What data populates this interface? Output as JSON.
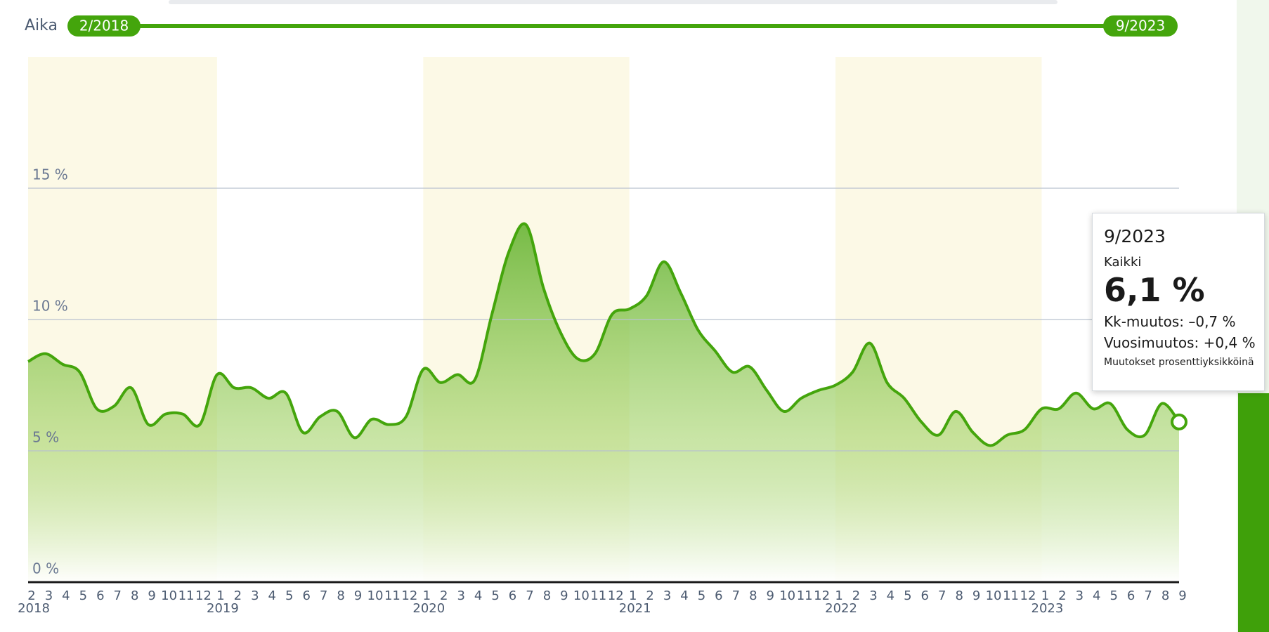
{
  "slider": {
    "label": "Aika",
    "start": "2/2018",
    "end": "9/2023"
  },
  "chart_data": {
    "type": "area",
    "categories": [
      "2",
      "3",
      "4",
      "5",
      "6",
      "7",
      "8",
      "9",
      "10",
      "11",
      "12",
      "1",
      "2",
      "3",
      "4",
      "5",
      "6",
      "7",
      "8",
      "9",
      "10",
      "11",
      "12",
      "1",
      "2",
      "3",
      "4",
      "5",
      "6",
      "7",
      "8",
      "9",
      "10",
      "11",
      "12",
      "1",
      "2",
      "3",
      "4",
      "5",
      "6",
      "7",
      "8",
      "9",
      "10",
      "11",
      "12",
      "1",
      "2",
      "3",
      "4",
      "5",
      "6",
      "7",
      "8",
      "9",
      "10",
      "11",
      "12",
      "1",
      "2",
      "3",
      "4",
      "5",
      "6",
      "7",
      "8",
      "9"
    ],
    "year_labels": [
      "2018",
      "2019",
      "2020",
      "2021",
      "2022",
      "2023"
    ],
    "series": [
      {
        "name": "Kaikki",
        "color": "#44a50c",
        "values": [
          8.4,
          8.7,
          8.3,
          8.0,
          6.6,
          6.7,
          7.4,
          6.0,
          6.4,
          6.4,
          6.0,
          7.9,
          7.4,
          7.4,
          7.0,
          7.2,
          5.7,
          6.3,
          6.5,
          5.5,
          6.2,
          6.0,
          6.3,
          8.1,
          7.6,
          7.9,
          7.7,
          10.2,
          12.6,
          13.6,
          11.2,
          9.5,
          8.5,
          8.7,
          10.2,
          10.4,
          10.9,
          12.2,
          11.0,
          9.6,
          8.8,
          8.0,
          8.2,
          7.3,
          6.5,
          7.0,
          7.3,
          7.5,
          8.0,
          9.1,
          7.6,
          7.0,
          6.1,
          5.6,
          6.5,
          5.7,
          5.2,
          5.6,
          5.8,
          6.6,
          6.6,
          7.2,
          6.6,
          6.8,
          5.8,
          5.6,
          6.8,
          6.1
        ]
      }
    ],
    "ylim": [
      0,
      20
    ],
    "yticks": [
      {
        "value": 0,
        "label": "0 %"
      },
      {
        "value": 5,
        "label": "5 %"
      },
      {
        "value": 10,
        "label": "10 %"
      },
      {
        "value": 15,
        "label": "15 %"
      }
    ],
    "grid": true,
    "tooltip": {
      "title": "9/2023",
      "value_label": "6,1 %",
      "month_change": "Kk-muutos: –0,7 %",
      "year_change": "Vuosimuutos: +0,4 %",
      "note": "Muutokset prosenttiyksikköinä"
    }
  }
}
